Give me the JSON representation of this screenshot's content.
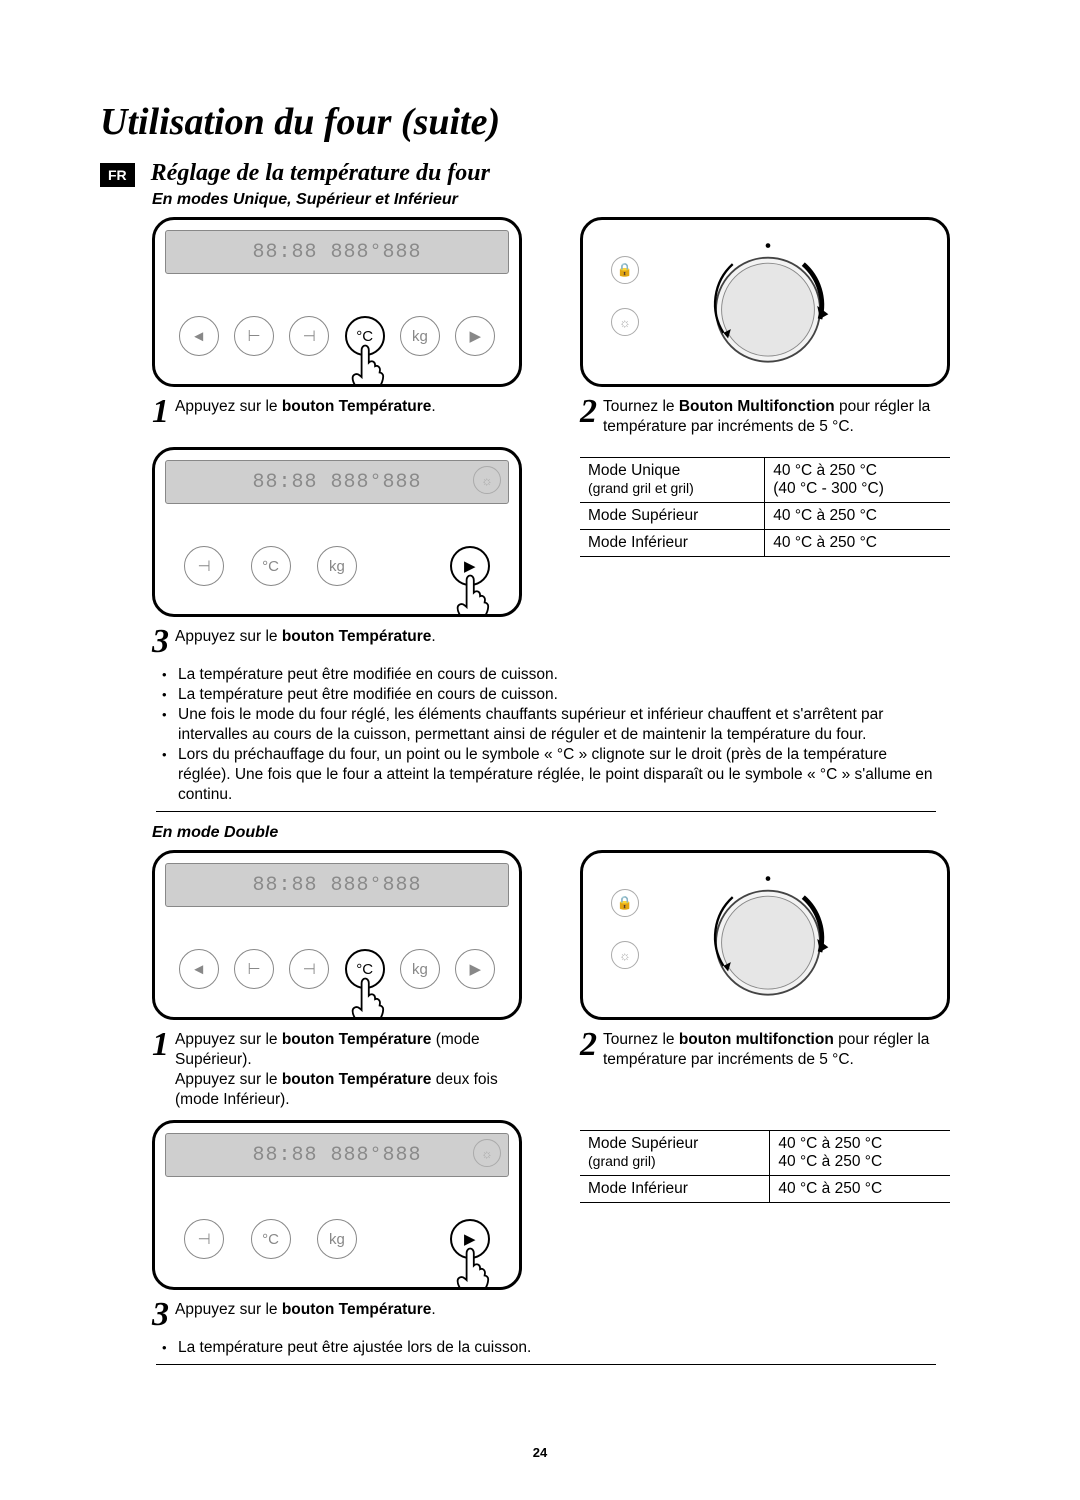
{
  "page_number": "24",
  "page_title": "Utilisation du four (suite)",
  "lang_badge": "FR",
  "section_title": "Réglage de la température du four",
  "subsection_1": "En modes Unique, Supérieur et Inférieur",
  "subsection_2": "En mode Double",
  "panel_display_text": "88:88  888°888",
  "buttons": {
    "left": "◄",
    "h1": "⊢",
    "h2": "⊣",
    "c": "°C",
    "kg": "kg",
    "right": "▶"
  },
  "dial_aux_top": "🔒",
  "dial_aux_bottom": "☼",
  "s1_step1_pre": "Appuyez sur le ",
  "s1_step1_bold": "bouton Température",
  "s1_step1_post": ".",
  "s1_step2_pre": "Tournez le ",
  "s1_step2_bold": "Bouton Multifonction",
  "s1_step2_post": " pour régler la température par incréments de 5 °C.",
  "s1_step3_pre": "Appuyez sur le ",
  "s1_step3_bold": "bouton Température",
  "s1_step3_post": ".",
  "table1": {
    "r1c1a": "Mode Unique",
    "r1c1b": "(grand gril et gril)",
    "r1c2a": "40 °C à 250 °C",
    "r1c2b": "(40 °C - 300 °C)",
    "r2c1": "Mode Supérieur",
    "r2c2": "40 °C à 250 °C",
    "r3c1": "Mode Inférieur",
    "r3c2": "40 °C à 250 °C"
  },
  "s1_bullets": [
    "La température peut être modifiée en cours de cuisson.",
    "La température peut être modifiée en cours de cuisson.",
    "Une fois le mode du four réglé, les éléments chauffants supérieur et inférieur chauffent et s'arrêtent par intervalles au cours de la cuisson, permettant ainsi de réguler et de maintenir la température du four.",
    "Lors du préchauffage du four, un point ou le symbole « °C » clignote sur le droit (près de la température réglée). Une fois que le four a atteint la température réglée, le point disparaît ou le symbole « °C » s'allume en continu."
  ],
  "s2_step1_line1_pre": "Appuyez sur le ",
  "s2_step1_line1_bold": "bouton Température",
  "s2_step1_line1_post": " (mode Supérieur).",
  "s2_step1_line2_pre": "Appuyez sur le ",
  "s2_step1_line2_bold": "bouton Température",
  "s2_step1_line2_post": " deux fois (mode Inférieur).",
  "s2_step2_pre": "Tournez le ",
  "s2_step2_bold": "bouton multifonction",
  "s2_step2_post": " pour régler la température par incréments de 5 °C.",
  "s2_step3_pre": "Appuyez sur le ",
  "s2_step3_bold": "bouton Température",
  "s2_step3_post": ".",
  "table2": {
    "r1c1a": "Mode Supérieur",
    "r1c1b": "(grand gril)",
    "r1c2a": "40 °C à 250 °C",
    "r1c2b": "40 °C à 250 °C",
    "r2c1": "Mode Inférieur",
    "r2c2": "40 °C à 250 °C"
  },
  "s2_bullets": [
    "La température peut être ajustée lors de la cuisson."
  ]
}
